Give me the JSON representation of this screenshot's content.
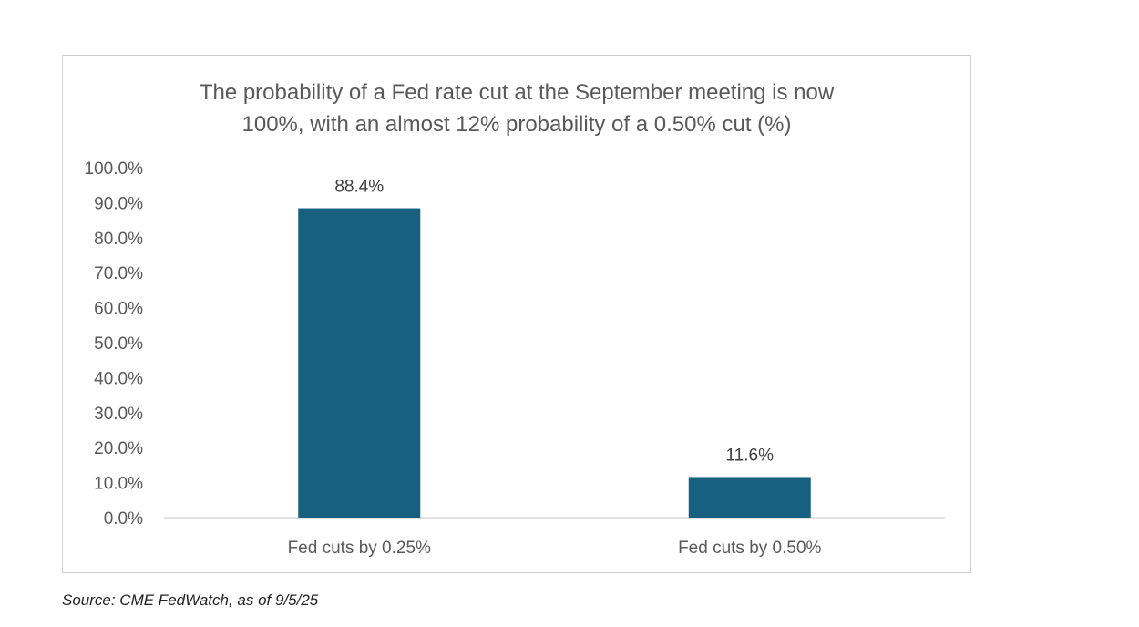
{
  "chart_data": {
    "type": "bar",
    "title_lines": [
      "The probability of a Fed rate cut at the September meeting is now",
      "100%, with an almost 12% probability of a 0.50% cut (%)"
    ],
    "categories": [
      "Fed cuts by 0.25%",
      "Fed cuts by 0.50%"
    ],
    "values": [
      88.4,
      11.6
    ],
    "data_labels": [
      "88.4%",
      "11.6%"
    ],
    "ylim": [
      0,
      100
    ],
    "y_ticks": [
      "0.0%",
      "10.0%",
      "20.0%",
      "30.0%",
      "40.0%",
      "50.0%",
      "60.0%",
      "70.0%",
      "80.0%",
      "90.0%",
      "100.0%"
    ],
    "xlabel": "",
    "ylabel": "",
    "grid": false,
    "legend": "none",
    "bar_color": "#17607f"
  },
  "source": "Source: CME FedWatch, as of 9/5/25"
}
